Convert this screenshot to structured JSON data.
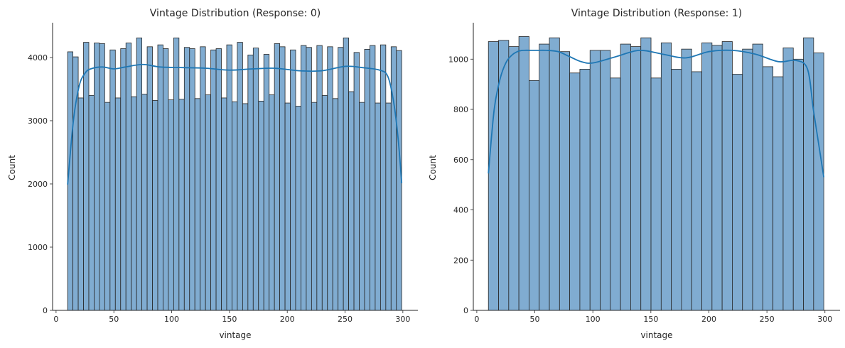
{
  "chart_data": [
    {
      "type": "bar",
      "title": "Vintage Distribution (Response: 0)",
      "xlabel": "vintage",
      "ylabel": "Count",
      "xlim": [
        -3,
        313
      ],
      "ylim": [
        0,
        4550
      ],
      "xticks": [
        0,
        50,
        100,
        150,
        200,
        250,
        300
      ],
      "yticks": [
        0,
        1000,
        2000,
        3000,
        4000
      ],
      "bin_edges_range": [
        10,
        299
      ],
      "bar_color": "#80acd1",
      "edge_color": "#262626",
      "kde_color": "#1f77b4",
      "values": [
        4090,
        4010,
        3360,
        4240,
        3400,
        4230,
        4220,
        3290,
        4120,
        3360,
        4140,
        4230,
        3380,
        4310,
        3420,
        4170,
        3320,
        4200,
        4140,
        3330,
        4310,
        3340,
        4160,
        4140,
        3350,
        4170,
        3410,
        4120,
        4140,
        3360,
        4200,
        3300,
        4240,
        3270,
        4040,
        4150,
        3310,
        4050,
        3410,
        4220,
        4170,
        3280,
        4120,
        3230,
        4190,
        4160,
        3290,
        4190,
        3400,
        4170,
        3350,
        4160,
        4310,
        3460,
        4080,
        3290,
        4130,
        4190,
        3280,
        4200,
        3280,
        4170,
        4110
      ],
      "kde": {
        "x": [
          10,
          15,
          20,
          25,
          30,
          40,
          50,
          60,
          75,
          90,
          110,
          130,
          150,
          170,
          190,
          210,
          230,
          250,
          265,
          280,
          287,
          292,
          296,
          299
        ],
        "y": [
          1990,
          3000,
          3550,
          3750,
          3820,
          3850,
          3820,
          3850,
          3890,
          3850,
          3840,
          3830,
          3800,
          3820,
          3830,
          3790,
          3790,
          3860,
          3840,
          3800,
          3700,
          3300,
          2700,
          2010
        ]
      }
    },
    {
      "type": "bar",
      "title": "Vintage Distribution (Response: 1)",
      "xlabel": "vintage",
      "ylabel": "Count",
      "xlim": [
        -3,
        313
      ],
      "ylim": [
        0,
        1145
      ],
      "xticks": [
        0,
        50,
        100,
        150,
        200,
        250,
        300
      ],
      "yticks": [
        0,
        200,
        400,
        600,
        800,
        1000
      ],
      "bin_edges_range": [
        10,
        299
      ],
      "bar_color": "#80acd1",
      "edge_color": "#262626",
      "kde_color": "#1f77b4",
      "values": [
        1070,
        1075,
        1050,
        1090,
        915,
        1060,
        1085,
        1030,
        945,
        960,
        1035,
        1035,
        925,
        1060,
        1050,
        1085,
        925,
        1065,
        960,
        1040,
        950,
        1065,
        1055,
        1070,
        940,
        1040,
        1060,
        970,
        930,
        1045,
        1000,
        1085,
        1025
      ],
      "kde": {
        "x": [
          10,
          15,
          20,
          25,
          30,
          35,
          40,
          50,
          60,
          70,
          80,
          90,
          100,
          120,
          140,
          160,
          180,
          200,
          220,
          240,
          260,
          275,
          285,
          290,
          295,
          299
        ],
        "y": [
          545,
          800,
          920,
          985,
          1015,
          1030,
          1035,
          1035,
          1035,
          1030,
          1010,
          990,
          985,
          1010,
          1035,
          1020,
          1005,
          1030,
          1035,
          1020,
          990,
          995,
          960,
          800,
          650,
          530
        ]
      }
    }
  ]
}
